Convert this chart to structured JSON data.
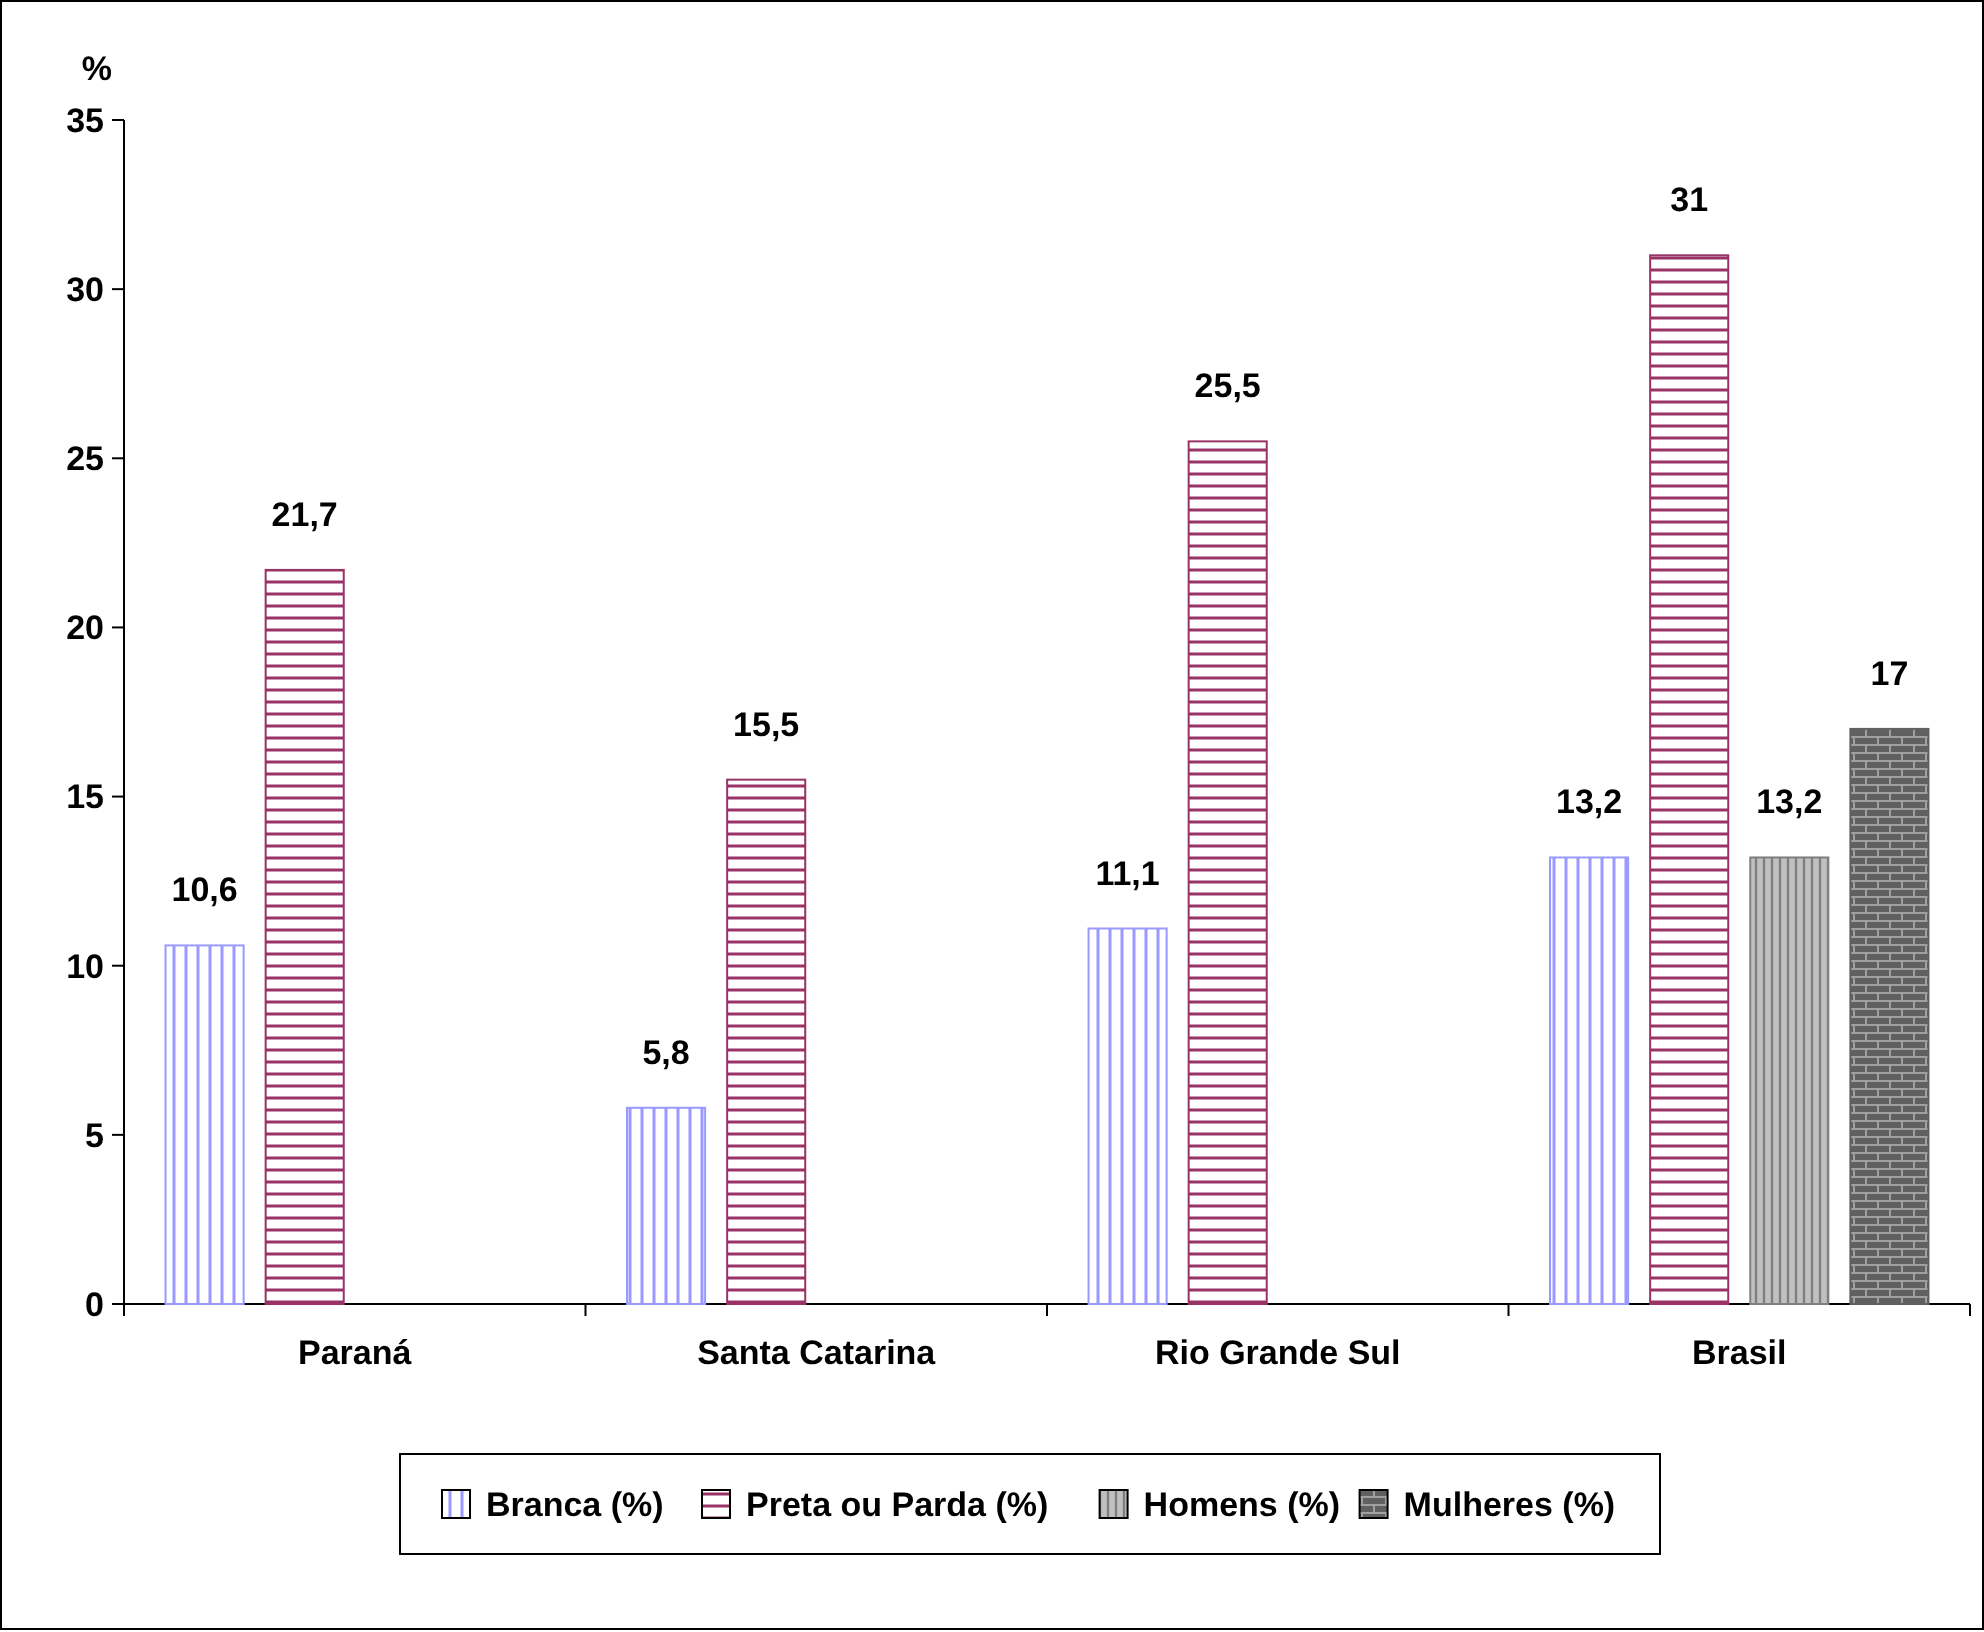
{
  "chart_data": {
    "type": "bar",
    "ylabel": "%",
    "categories": [
      "Paraná",
      "Santa Catarina",
      "Rio Grande Sul",
      "Brasil"
    ],
    "series": [
      {
        "name": "Branca (%)",
        "color": "#9999ff",
        "values": [
          10.6,
          5.8,
          11.1,
          13.2
        ],
        "value_labels": [
          "10,6",
          "5,8",
          "11,1",
          "13,2"
        ]
      },
      {
        "name": "Preta ou Parda (%)",
        "color": "#993366",
        "values": [
          21.7,
          15.5,
          25.5,
          31
        ],
        "value_labels": [
          "21,7",
          "15,5",
          "25,5",
          "31"
        ]
      },
      {
        "name": "Homens (%)",
        "color": "#808080",
        "values": [
          null,
          null,
          null,
          13.2
        ],
        "value_labels": [
          null,
          null,
          null,
          "13,2"
        ]
      },
      {
        "name": "Mulheres (%)",
        "color": "#606060",
        "values": [
          null,
          null,
          null,
          17
        ],
        "value_labels": [
          null,
          null,
          null,
          "17"
        ]
      }
    ],
    "ylim": [
      0,
      35
    ],
    "yticks": [
      0,
      5,
      10,
      15,
      20,
      25,
      30,
      35
    ],
    "legend": "bottom"
  }
}
